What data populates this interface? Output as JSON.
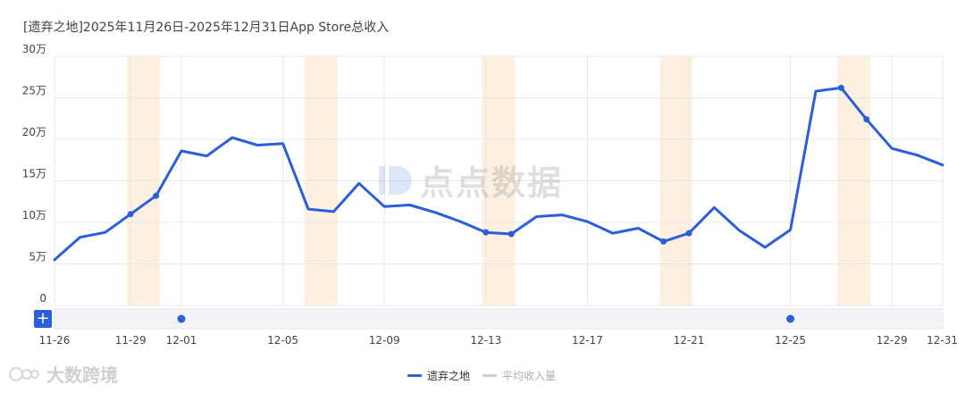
{
  "title": "[遗弃之地]2025年11月26日-2025年12月31日App Store总收入",
  "add_button_label": "+",
  "watermark": {
    "center_text": "点点数据",
    "corner_text": "大数跨境"
  },
  "colors": {
    "series": "#2b5fd9",
    "weekend_band": "#fdf0e1",
    "grid": "#e8e8e8",
    "legend_off": "#cfcfcf"
  },
  "chart_data": {
    "type": "line",
    "title": "[遗弃之地]2025年11月26日-2025年12月31日App Store总收入",
    "ylim": [
      0,
      300000
    ],
    "y_ticks": [
      0,
      50000,
      100000,
      150000,
      200000,
      250000,
      300000
    ],
    "y_tick_labels": [
      "0",
      "5万",
      "10万",
      "15万",
      "20万",
      "25万",
      "30万"
    ],
    "x_tick_labels": [
      "11-26",
      "11-29",
      "12-01",
      "12-05",
      "12-09",
      "12-13",
      "12-17",
      "12-21",
      "12-25",
      "12-29",
      "12-31"
    ],
    "x_tick_days": [
      0,
      3,
      5,
      9,
      13,
      17,
      21,
      25,
      29,
      33,
      35
    ],
    "weekend_bands": [
      [
        3,
        4
      ],
      [
        10,
        11
      ],
      [
        17,
        18
      ],
      [
        24,
        25
      ],
      [
        31,
        32
      ]
    ],
    "series": [
      {
        "name": "遗弃之地",
        "x": [
          "11-26",
          "11-27",
          "11-28",
          "11-29",
          "11-30",
          "12-01",
          "12-02",
          "12-03",
          "12-04",
          "12-05",
          "12-06",
          "12-07",
          "12-08",
          "12-09",
          "12-10",
          "12-11",
          "12-12",
          "12-13",
          "12-14",
          "12-15",
          "12-16",
          "12-17",
          "12-18",
          "12-19",
          "12-20",
          "12-21",
          "12-22",
          "12-23",
          "12-24",
          "12-25",
          "12-26",
          "12-27",
          "12-28",
          "12-29",
          "12-30",
          "12-31"
        ],
        "values": [
          55000,
          82000,
          88000,
          110000,
          132000,
          186000,
          180000,
          202000,
          193000,
          195000,
          116000,
          113000,
          147000,
          119000,
          121000,
          112000,
          101000,
          88000,
          86000,
          107000,
          109000,
          101000,
          87000,
          93000,
          77000,
          87000,
          118000,
          90000,
          70000,
          91000,
          258000,
          262000,
          224000,
          189000,
          181000,
          169000
        ],
        "markers": [
          3,
          4,
          17,
          18,
          24,
          25,
          31,
          32
        ]
      }
    ],
    "legend": [
      {
        "name": "遗弃之地",
        "active": true
      },
      {
        "name": "平均收入量",
        "active": false
      }
    ],
    "event_markers": [
      5,
      29
    ],
    "legend_position": "bottom-center"
  }
}
